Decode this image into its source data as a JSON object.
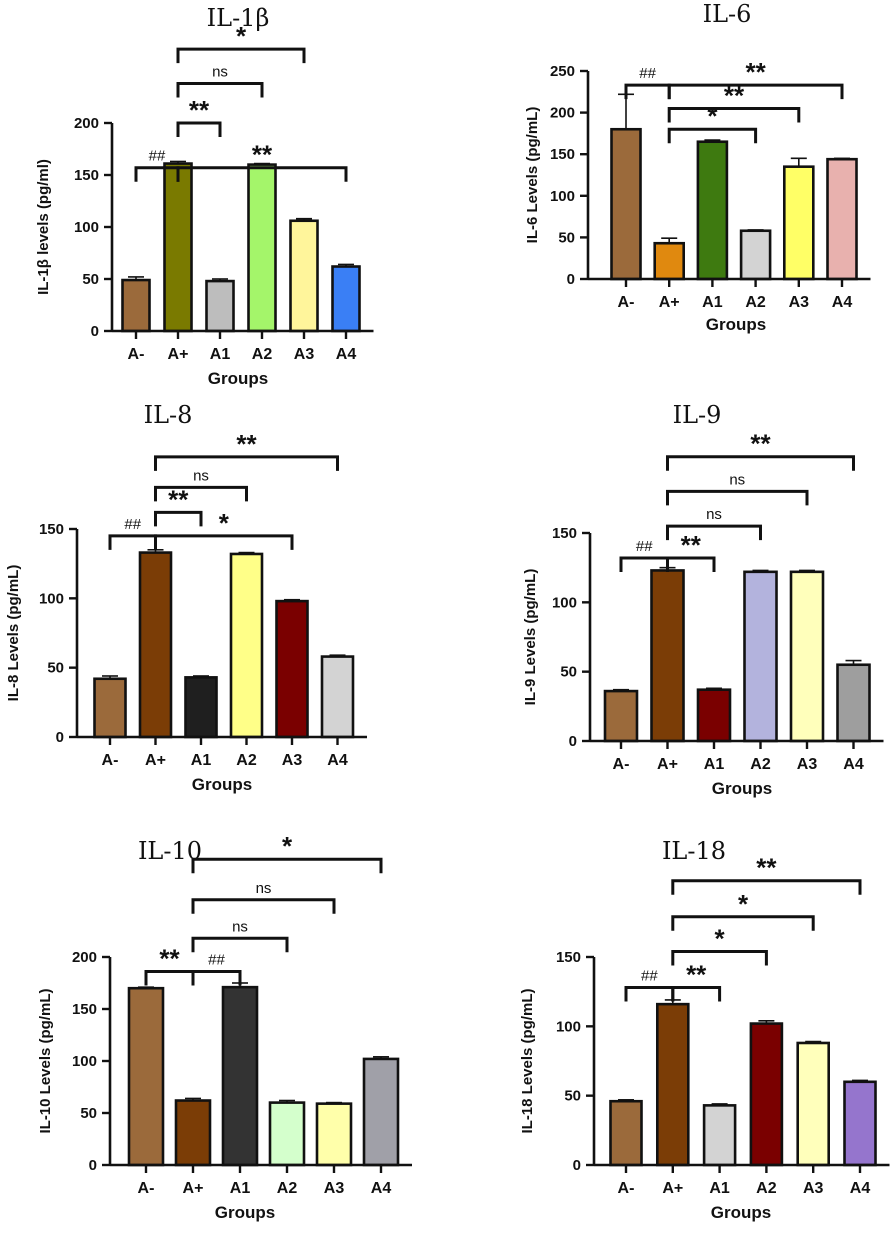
{
  "chart_data": [
    {
      "type": "bar",
      "title": "IL-1β",
      "ylabel": "IL-1β levels (pg/ml)",
      "xlabel": "Groups",
      "categories": [
        "A-",
        "A+",
        "A1",
        "A2",
        "A3",
        "A4"
      ],
      "values": [
        49,
        161,
        48,
        160,
        106,
        62
      ],
      "errors": [
        3,
        2,
        2,
        1,
        2,
        2
      ],
      "colors": [
        "#9b6a3b",
        "#7a7a00",
        "#bdbdbd",
        "#a4f56a",
        "#fff59b",
        "#3a7ff5"
      ],
      "yticks": [
        0,
        50,
        100,
        150,
        200
      ],
      "ylim": [
        0,
        200
      ],
      "significance": [
        {
          "from": 0,
          "to": 1,
          "label": "##",
          "level": 157
        },
        {
          "from": 1,
          "to": 2,
          "label": "**",
          "level": 200
        },
        {
          "from": 1,
          "to": 5,
          "label": "**",
          "level": 157
        },
        {
          "from": 1,
          "to": 3,
          "label": "ns",
          "level": 238
        },
        {
          "from": 1,
          "to": 4,
          "label": "*",
          "level": 271
        }
      ]
    },
    {
      "type": "bar",
      "title": "IL-6",
      "ylabel": "IL-6 Levels (pg/mL)",
      "xlabel": "Groups",
      "categories": [
        "A-",
        "A+",
        "A1",
        "A2",
        "A3",
        "A4"
      ],
      "values": [
        180,
        43,
        165,
        58,
        135,
        144
      ],
      "errors": [
        42,
        6,
        2,
        1,
        10,
        1
      ],
      "colors": [
        "#9b6a3b",
        "#e0890f",
        "#3e7a10",
        "#d3d3d3",
        "#ffff66",
        "#e8b1ae"
      ],
      "yticks": [
        0,
        50,
        100,
        150,
        200,
        250
      ],
      "ylim": [
        0,
        250
      ],
      "significance": [
        {
          "from": 0,
          "to": 1,
          "label": "##",
          "level": 233
        },
        {
          "from": 1,
          "to": 5,
          "label": "**",
          "level": 233
        },
        {
          "from": 1,
          "to": 4,
          "label": "**",
          "level": 205
        },
        {
          "from": 1,
          "to": 3,
          "label": "*",
          "level": 180
        }
      ]
    },
    {
      "type": "bar",
      "title": "IL-8",
      "ylabel": "IL-8 Levels (pg/mL)",
      "xlabel": "Groups",
      "categories": [
        "A-",
        "A+",
        "A1",
        "A2",
        "A3",
        "A4"
      ],
      "values": [
        42,
        133,
        43,
        132,
        98,
        58
      ],
      "errors": [
        2,
        2,
        1,
        1,
        1,
        1
      ],
      "colors": [
        "#9b6a3b",
        "#7b3d06",
        "#1f1f1f",
        "#ffff88",
        "#7a0000",
        "#d3d3d3"
      ],
      "yticks": [
        0,
        50,
        100,
        150
      ],
      "ylim": [
        0,
        150
      ],
      "significance": [
        {
          "from": 0,
          "to": 1,
          "label": "##",
          "level": 145
        },
        {
          "from": 1,
          "to": 2,
          "label": "**",
          "level": 162
        },
        {
          "from": 1,
          "to": 4,
          "label": "*",
          "level": 145
        },
        {
          "from": 1,
          "to": 3,
          "label": "ns",
          "level": 180
        },
        {
          "from": 1,
          "to": 5,
          "label": "**",
          "level": 202
        }
      ]
    },
    {
      "type": "bar",
      "title": "IL-9",
      "ylabel": "IL-9 Levels (pg/mL)",
      "xlabel": "Groups",
      "categories": [
        "A-",
        "A+",
        "A1",
        "A2",
        "A3",
        "A4"
      ],
      "values": [
        36,
        123,
        37,
        122,
        122,
        55
      ],
      "errors": [
        1,
        2,
        1,
        1,
        1,
        3
      ],
      "colors": [
        "#9b6a3b",
        "#7b3d06",
        "#7a0000",
        "#b3b3dd",
        "#ffffbb",
        "#9e9e9e"
      ],
      "yticks": [
        0,
        50,
        100,
        150
      ],
      "ylim": [
        0,
        150
      ],
      "significance": [
        {
          "from": 0,
          "to": 1,
          "label": "##",
          "level": 132
        },
        {
          "from": 1,
          "to": 2,
          "label": "**",
          "level": 132
        },
        {
          "from": 1,
          "to": 3,
          "label": "ns",
          "level": 155
        },
        {
          "from": 1,
          "to": 4,
          "label": "ns",
          "level": 180
        },
        {
          "from": 1,
          "to": 5,
          "label": "**",
          "level": 205
        }
      ]
    },
    {
      "type": "bar",
      "title": "IL-10",
      "ylabel": "IL-10 Levels (pg/mL)",
      "xlabel": "Groups",
      "categories": [
        "A-",
        "A+",
        "A1",
        "A2",
        "A3",
        "A4"
      ],
      "values": [
        170,
        62,
        171,
        60,
        59,
        102
      ],
      "errors": [
        1,
        2,
        4,
        2,
        1,
        2
      ],
      "colors": [
        "#9b6a3b",
        "#7b3d06",
        "#333333",
        "#d4ffcc",
        "#ffffaa",
        "#a0a0a8"
      ],
      "yticks": [
        0,
        50,
        100,
        150,
        200
      ],
      "ylim": [
        0,
        200
      ],
      "significance": [
        {
          "from": 0,
          "to": 1,
          "label": "**",
          "level": 186
        },
        {
          "from": 1,
          "to": 2,
          "label": "##",
          "level": 186
        },
        {
          "from": 1,
          "to": 3,
          "label": "ns",
          "level": 218
        },
        {
          "from": 1,
          "to": 4,
          "label": "ns",
          "level": 255
        },
        {
          "from": 1,
          "to": 5,
          "label": "*",
          "level": 294
        }
      ]
    },
    {
      "type": "bar",
      "title": "IL-18",
      "ylabel": "IL-18 Levels (pg/mL)",
      "xlabel": "Groups",
      "categories": [
        "A-",
        "A+",
        "A1",
        "A2",
        "A3",
        "A4"
      ],
      "values": [
        46,
        116,
        43,
        102,
        88,
        60
      ],
      "errors": [
        1,
        3,
        1,
        2,
        1,
        1
      ],
      "colors": [
        "#9b6a3b",
        "#7b3d06",
        "#d3d3d3",
        "#7a0000",
        "#ffffbb",
        "#9575cd"
      ],
      "yticks": [
        0,
        50,
        100,
        150
      ],
      "ylim": [
        0,
        150
      ],
      "significance": [
        {
          "from": 0,
          "to": 1,
          "label": "##",
          "level": 128
        },
        {
          "from": 1,
          "to": 2,
          "label": "**",
          "level": 128
        },
        {
          "from": 1,
          "to": 3,
          "label": "*",
          "level": 154
        },
        {
          "from": 1,
          "to": 4,
          "label": "*",
          "level": 179
        },
        {
          "from": 1,
          "to": 5,
          "label": "**",
          "level": 205
        }
      ]
    }
  ]
}
